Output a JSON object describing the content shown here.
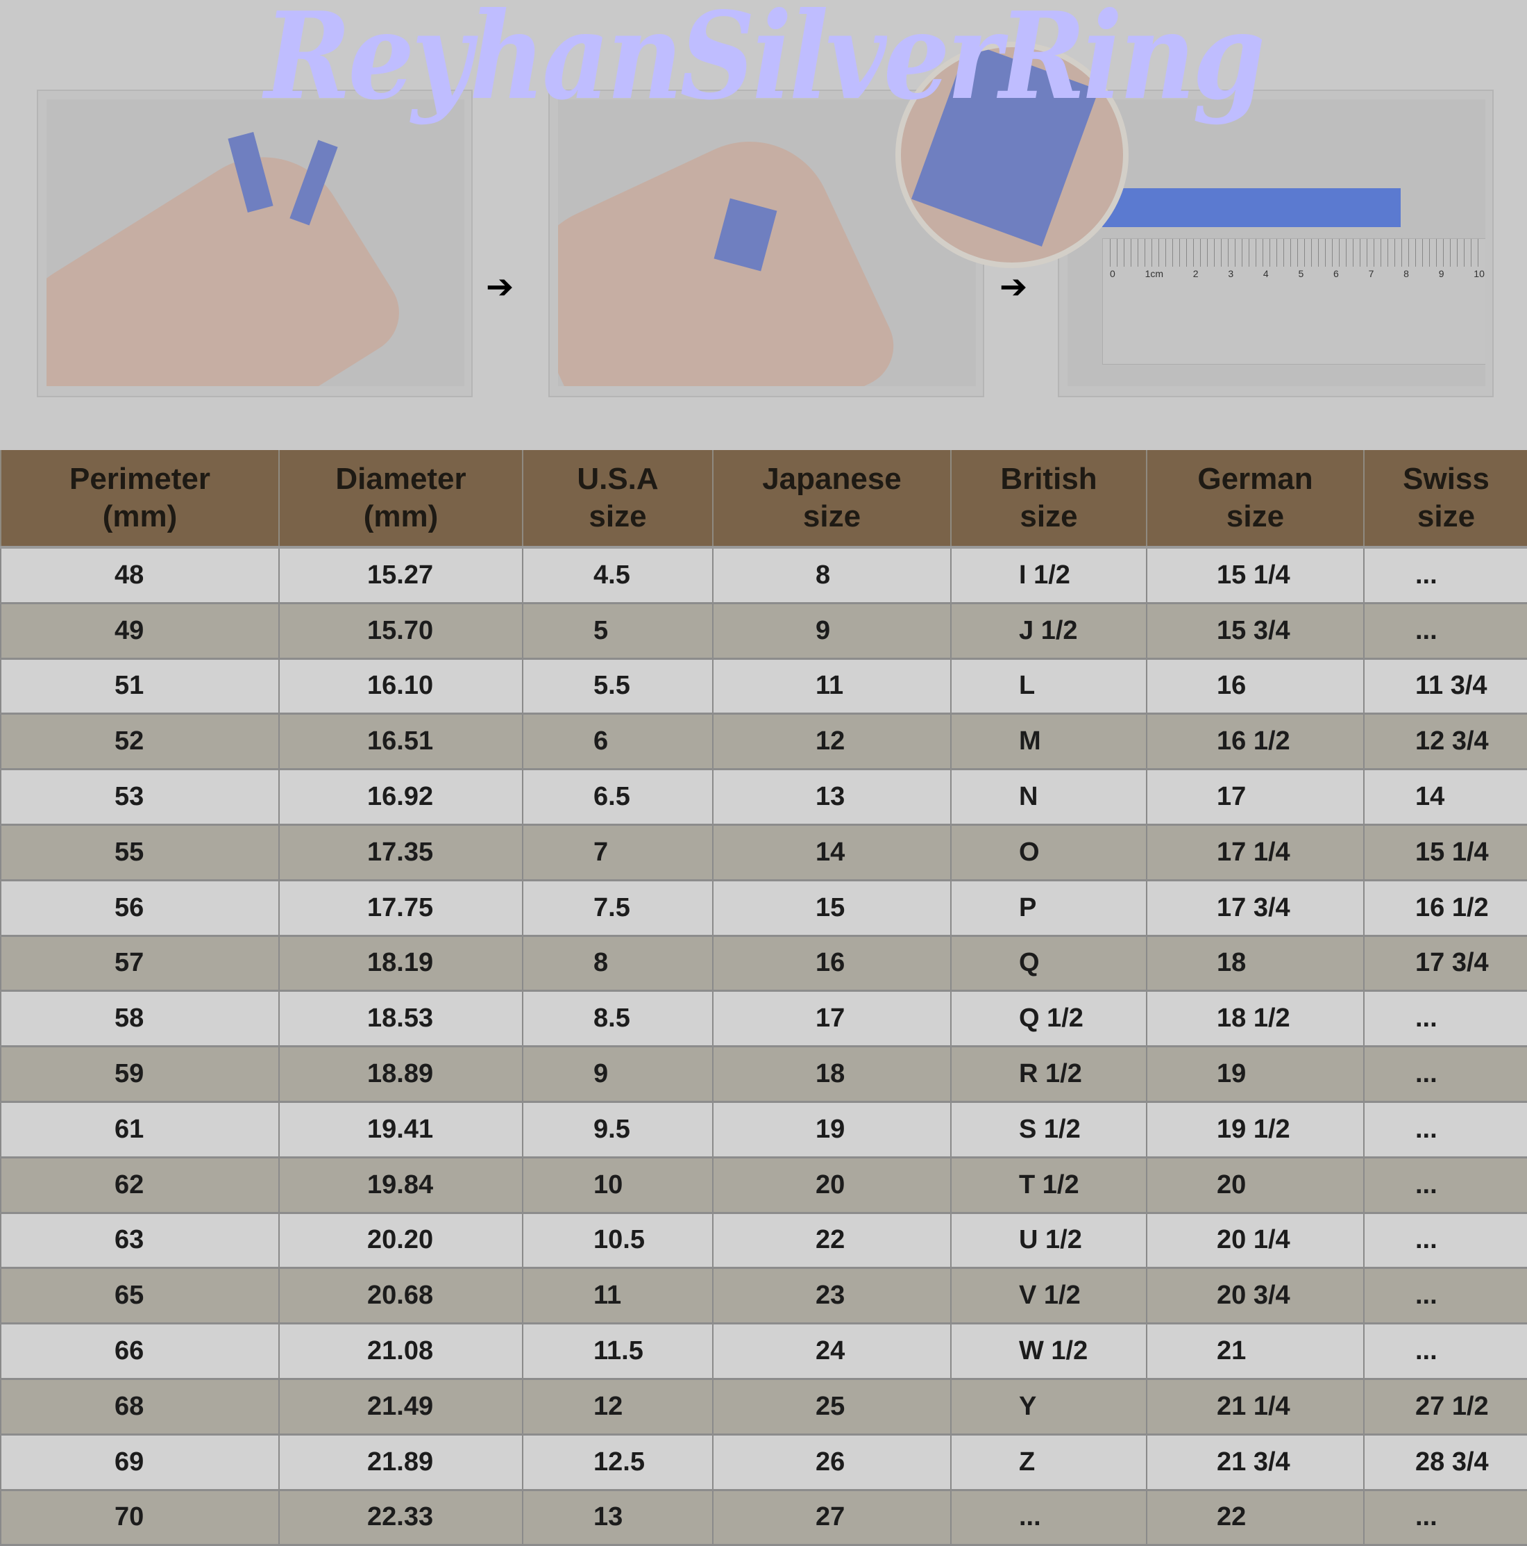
{
  "brand": {
    "title": "ReyhanSilverRing",
    "color": "#bfbdff"
  },
  "steps": {
    "arrow_icon": "arrow-right-icon",
    "ruler_labels": [
      "0",
      "1cm",
      "2",
      "3",
      "4",
      "5",
      "6",
      "7",
      "8",
      "9",
      "10"
    ]
  },
  "colors": {
    "header": "#7a6349",
    "row_light": "#d2d2d2",
    "row_dark": "#aba89e",
    "strip": "#6f7fc0"
  },
  "table": {
    "headers": [
      [
        "Perimeter",
        "(mm)"
      ],
      [
        "Diameter",
        "(mm)"
      ],
      [
        "U.S.A",
        "size"
      ],
      [
        "Japanese",
        "size"
      ],
      [
        "British",
        "size"
      ],
      [
        "German",
        "size"
      ],
      [
        "Swiss",
        "size"
      ]
    ],
    "rows": [
      [
        "48",
        "15.27",
        "4.5",
        "8",
        "I 1/2",
        "15 1/4",
        "..."
      ],
      [
        "49",
        "15.70",
        "5",
        "9",
        "J 1/2",
        "15 3/4",
        "..."
      ],
      [
        "51",
        "16.10",
        "5.5",
        "11",
        "L",
        "16",
        "11 3/4"
      ],
      [
        "52",
        "16.51",
        "6",
        "12",
        "M",
        "16 1/2",
        "12 3/4"
      ],
      [
        "53",
        "16.92",
        "6.5",
        "13",
        "N",
        "17",
        "14"
      ],
      [
        "55",
        "17.35",
        "7",
        "14",
        "O",
        "17 1/4",
        "15 1/4"
      ],
      [
        "56",
        "17.75",
        "7.5",
        "15",
        "P",
        "17 3/4",
        "16 1/2"
      ],
      [
        "57",
        "18.19",
        "8",
        "16",
        "Q",
        "18",
        "17 3/4"
      ],
      [
        "58",
        "18.53",
        "8.5",
        "17",
        "Q 1/2",
        "18 1/2",
        "..."
      ],
      [
        "59",
        "18.89",
        "9",
        "18",
        "R 1/2",
        "19",
        "..."
      ],
      [
        "61",
        "19.41",
        "9.5",
        "19",
        "S 1/2",
        "19 1/2",
        "..."
      ],
      [
        "62",
        "19.84",
        "10",
        "20",
        "T 1/2",
        "20",
        "..."
      ],
      [
        "63",
        "20.20",
        "10.5",
        "22",
        "U 1/2",
        "20 1/4",
        "..."
      ],
      [
        "65",
        "20.68",
        "11",
        "23",
        "V 1/2",
        "20 3/4",
        "..."
      ],
      [
        "66",
        "21.08",
        "11.5",
        "24",
        "W 1/2",
        "21",
        "..."
      ],
      [
        "68",
        "21.49",
        "12",
        "25",
        "Y",
        "21 1/4",
        "27 1/2"
      ],
      [
        "69",
        "21.89",
        "12.5",
        "26",
        "Z",
        "21 3/4",
        "28 3/4"
      ],
      [
        "70",
        "22.33",
        "13",
        "27",
        "...",
        "22",
        "..."
      ]
    ]
  }
}
